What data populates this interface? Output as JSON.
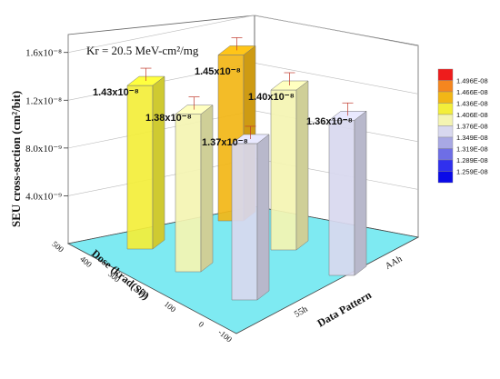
{
  "chart_data": {
    "type": "bar",
    "title": "Kr = 20.5 MeV-cm²/mg",
    "zlabel": "SEU cross-section (cm²/bit)",
    "xlabel": "Data Pattern",
    "ylabel": "Dose (krad(Si))",
    "z_ticks": [
      "4.0x10⁻⁹",
      "8.0x10⁻⁹",
      "1.2x10⁻⁸",
      "1.6x10⁻⁸"
    ],
    "z_tick_values": [
      4e-09,
      8e-09,
      1.2e-08,
      1.6e-08
    ],
    "zlim": [
      0,
      1.75e-08
    ],
    "dose_ticks": [
      "500",
      "400",
      "300",
      "200",
      "100",
      "0",
      "-100"
    ],
    "dose_tick_values": [
      500,
      400,
      300,
      200,
      100,
      0,
      -100
    ],
    "pattern_ticks": [
      "55h",
      "AAh"
    ],
    "bars": [
      {
        "pattern": "55h",
        "dose": 400,
        "value": 1.43e-08,
        "label": "1.43x10⁻⁸"
      },
      {
        "pattern": "55h",
        "dose": 200,
        "value": 1.38e-08,
        "label": "1.38x10⁻⁸"
      },
      {
        "pattern": "55h",
        "dose": 0,
        "value": 1.37e-08,
        "label": "1.37x10⁻⁸"
      },
      {
        "pattern": "AAh",
        "dose": 400,
        "value": 1.45e-08,
        "label": "1.45x10⁻⁸"
      },
      {
        "pattern": "AAh",
        "dose": 200,
        "value": 1.4e-08,
        "label": "1.40x10⁻⁸"
      },
      {
        "pattern": "AAh",
        "dose": 0,
        "value": 1.36e-08,
        "label": "1.36x10⁻⁸"
      }
    ],
    "color_scale": {
      "levels": [
        "1.496E-08",
        "1.466E-08",
        "1.436E-08",
        "1.406E-08",
        "1.376E-08",
        "1.349E-08",
        "1.319E-08",
        "1.289E-08",
        "1.259E-08"
      ],
      "colors": [
        "#ee1c1c",
        "#f5861f",
        "#f2b616",
        "#f3ee3a",
        "#f4f4b2",
        "#d8d8ef",
        "#a8a8e4",
        "#6e6ee6",
        "#3030ee",
        "#0a0ae8"
      ]
    },
    "floor_color": "#7eeaf2",
    "grid": true
  }
}
